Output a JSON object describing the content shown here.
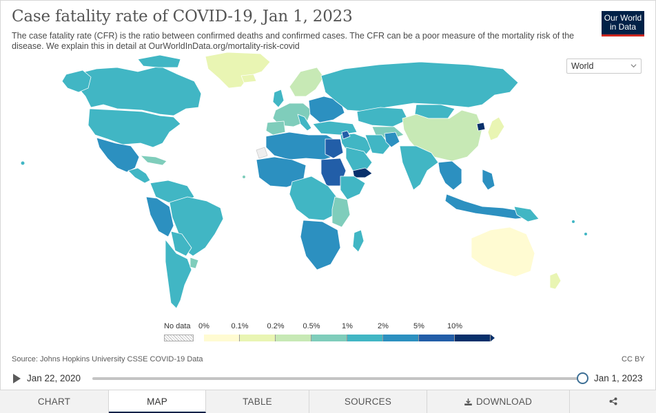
{
  "header": {
    "title": "Case fatality rate of COVID-19, Jan 1, 2023",
    "subtitle": "The case fatality rate (CFR) is the ratio between confirmed deaths and confirmed cases. The CFR can be a poor measure of the mortality risk of the disease. We explain this in detail at OurWorldInData.org/mortality-risk-covid",
    "logo_line1": "Our World",
    "logo_line2": "in Data"
  },
  "region_select": {
    "value": "World"
  },
  "legend": {
    "no_data_label": "No data",
    "bins": [
      {
        "label": "0%",
        "color": "#fffbd2"
      },
      {
        "label": "0.1%",
        "color": "#e9f5b3"
      },
      {
        "label": "0.2%",
        "color": "#c7e9b5"
      },
      {
        "label": "0.5%",
        "color": "#7fcdbb"
      },
      {
        "label": "1%",
        "color": "#41b6c4"
      },
      {
        "label": "2%",
        "color": "#2c90c0"
      },
      {
        "label": "5%",
        "color": "#225ea8"
      },
      {
        "label": "10%",
        "color": "#08306b"
      }
    ]
  },
  "footer": {
    "source": "Source: Johns Hopkins University CSSE COVID-19 Data",
    "license": "CC BY"
  },
  "timeline": {
    "start_date": "Jan 22, 2020",
    "end_date": "Jan 1, 2023",
    "position": 1.0
  },
  "tabs": [
    {
      "label": "CHART",
      "active": false
    },
    {
      "label": "MAP",
      "active": true
    },
    {
      "label": "TABLE",
      "active": false
    },
    {
      "label": "SOURCES",
      "active": false
    },
    {
      "label": "DOWNLOAD",
      "active": false
    }
  ],
  "colors": {
    "accent": "#002147",
    "logo_underline": "#ce261e",
    "handle_ring": "#3d6f95"
  },
  "icons": [
    "play-icon",
    "chevron-down-icon",
    "download-icon",
    "share-icon"
  ]
}
